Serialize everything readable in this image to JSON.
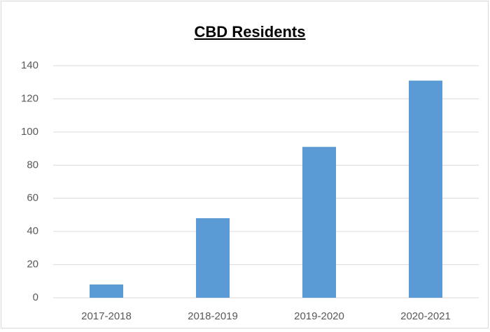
{
  "chart_data": {
    "type": "bar",
    "title": "CBD Residents",
    "categories": [
      "2017-2018",
      "2018-2019",
      "2019-2020",
      "2020-2021"
    ],
    "values": [
      8,
      48,
      91,
      131
    ],
    "color": "#5b9bd5",
    "ylim": [
      0,
      140
    ],
    "yticks": [
      0,
      20,
      40,
      60,
      80,
      100,
      120,
      140
    ],
    "grid": true
  }
}
